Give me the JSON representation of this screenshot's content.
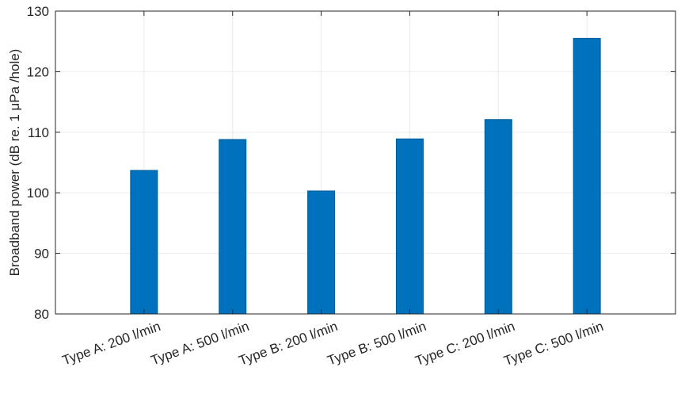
{
  "chart_data": {
    "type": "bar",
    "title": "",
    "xlabel": "",
    "ylabel": "Broadband power (dB re. 1 μPa /hole)",
    "categories": [
      "Type A: 200 l/min",
      "Type A: 500 l/min",
      "Type B: 200 l/min",
      "Type B: 500 l/min",
      "Type C: 200 l/min",
      "Type C: 500 l/min"
    ],
    "values": [
      103.7,
      108.8,
      100.3,
      108.9,
      112.1,
      125.5
    ],
    "ylim": [
      80,
      130
    ],
    "yticks": [
      80,
      90,
      100,
      110,
      120,
      130
    ],
    "grid": true,
    "bar_color": "#0072BD",
    "bar_edge_color": "#005a96",
    "grid_color": "#ebebeb",
    "axis_color": "#262626"
  }
}
